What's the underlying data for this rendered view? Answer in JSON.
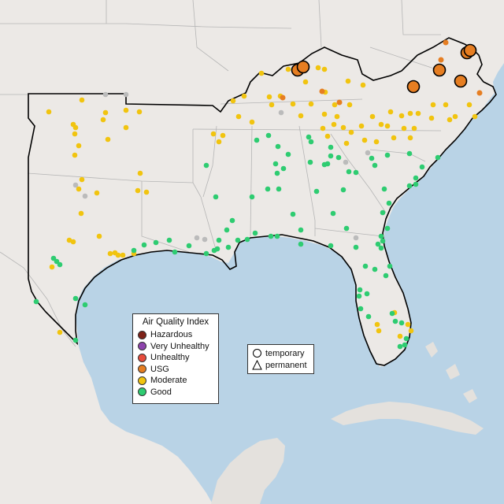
{
  "map": {
    "colors": {
      "ocean": "#b9d3e6",
      "land": "#ece9e6",
      "land_south": "#e4e1dd",
      "state_line": "#b5b5b5",
      "outline": "#000000"
    },
    "category_colors": {
      "Hazardous": "#7e2218",
      "Very Unhealthy": "#8e44ad",
      "Unhealthy": "#e74c3c",
      "USG": "#e67e22",
      "Moderate": "#f1c40f",
      "Good": "#2ecc71",
      "NoData": "#bbbbbb"
    }
  },
  "legend": {
    "title": "Air Quality Index",
    "items": [
      {
        "label": "Hazardous",
        "color": "#7e2218"
      },
      {
        "label": "Very Unhealthy",
        "color": "#8e44ad"
      },
      {
        "label": "Unhealthy",
        "color": "#e74c3c"
      },
      {
        "label": "USG",
        "color": "#e67e22"
      },
      {
        "label": "Moderate",
        "color": "#f1c40f"
      },
      {
        "label": "Good",
        "color": "#2ecc71"
      }
    ]
  },
  "monitor_types": {
    "temporary": {
      "label": "temporary",
      "symbol": "circle"
    },
    "permanent": {
      "label": "permanent",
      "symbol": "triangle"
    }
  }
}
